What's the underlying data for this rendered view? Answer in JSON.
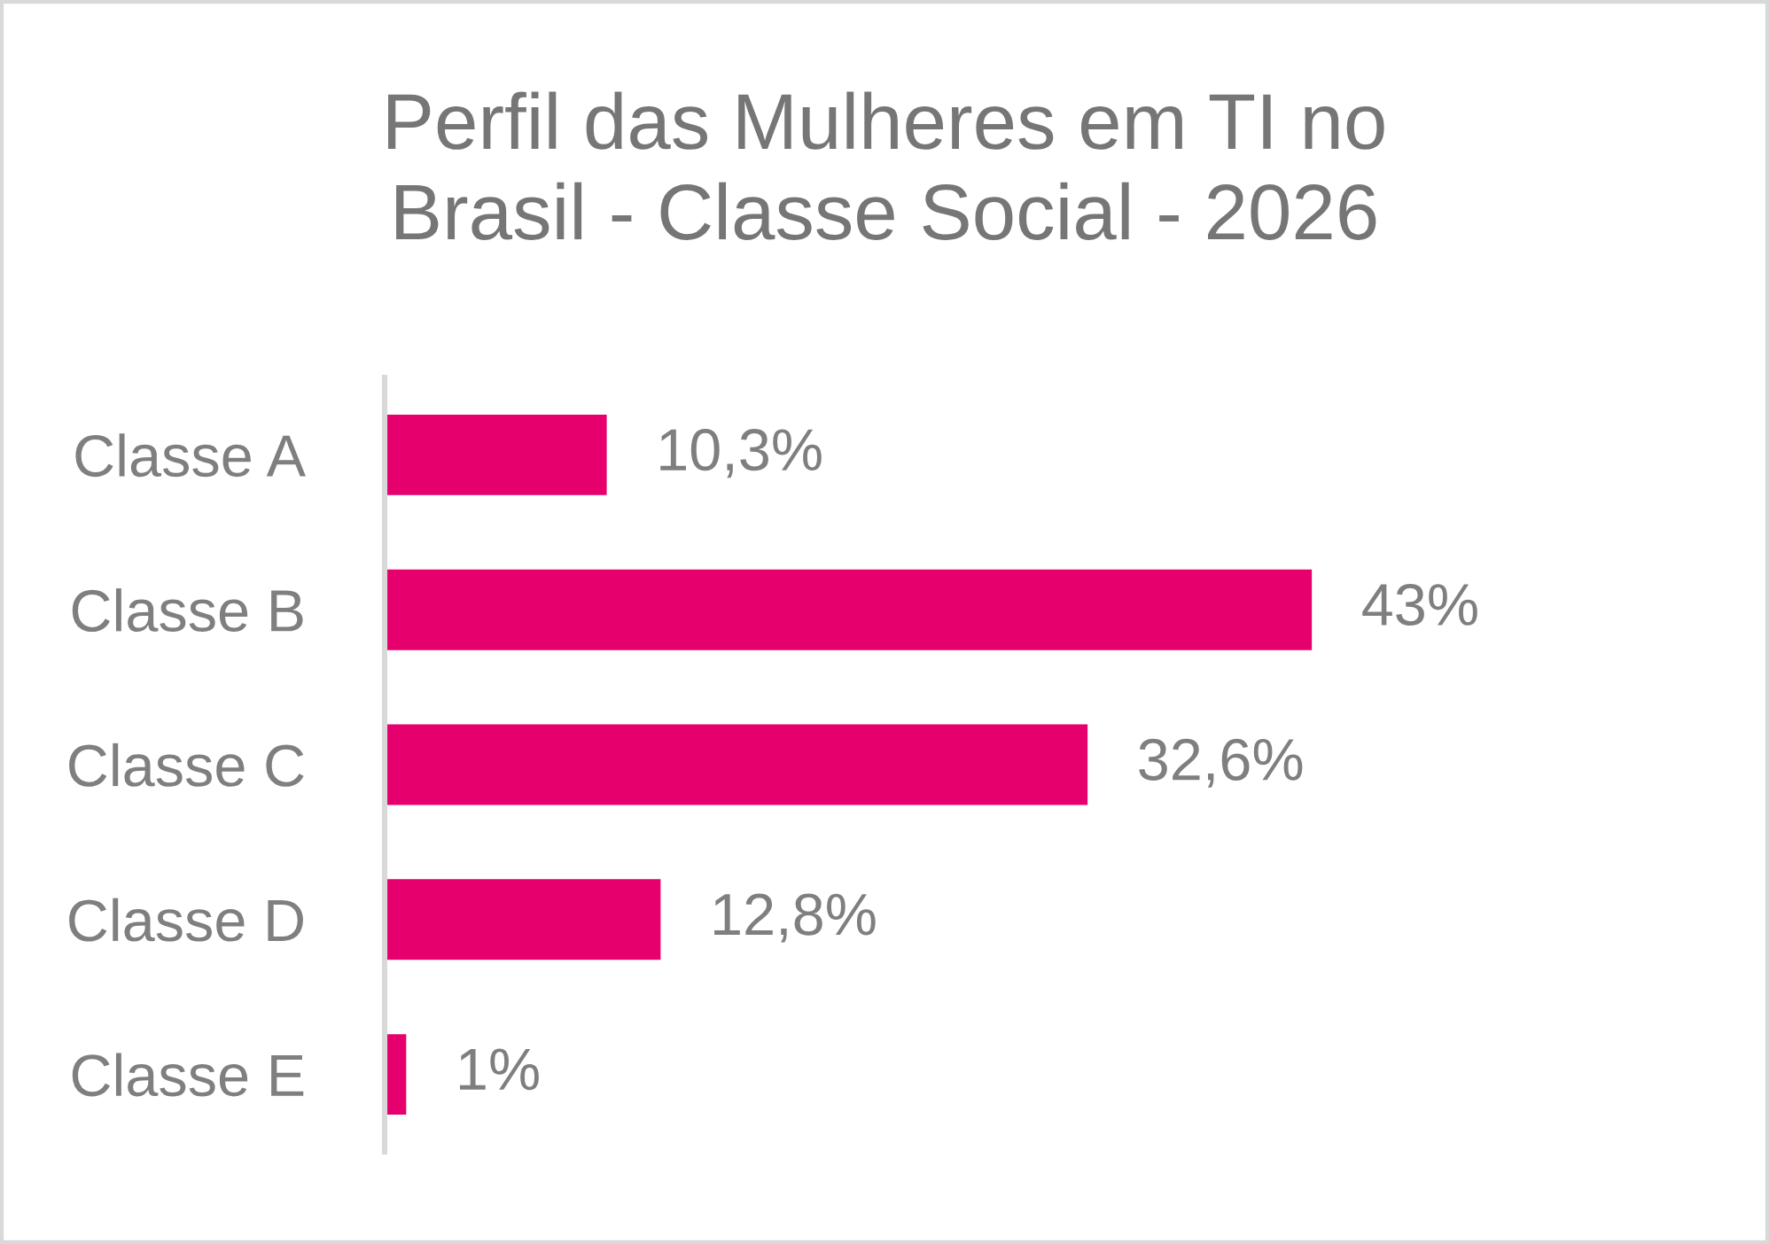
{
  "chart_data": {
    "type": "bar",
    "orientation": "horizontal",
    "title": "Perfil das Mulheres em TI no\nBrasil - Classe Social - 2026",
    "categories": [
      "Classe A",
      "Classe B",
      "Classe C",
      "Classe D",
      "Classe E"
    ],
    "values": [
      10.3,
      43,
      32.6,
      12.8,
      1
    ],
    "value_labels": [
      "10,3%",
      "43%",
      "32,6%",
      "12,8%",
      "1%"
    ],
    "color": "#e6006e",
    "tick_labels": "y"
  }
}
